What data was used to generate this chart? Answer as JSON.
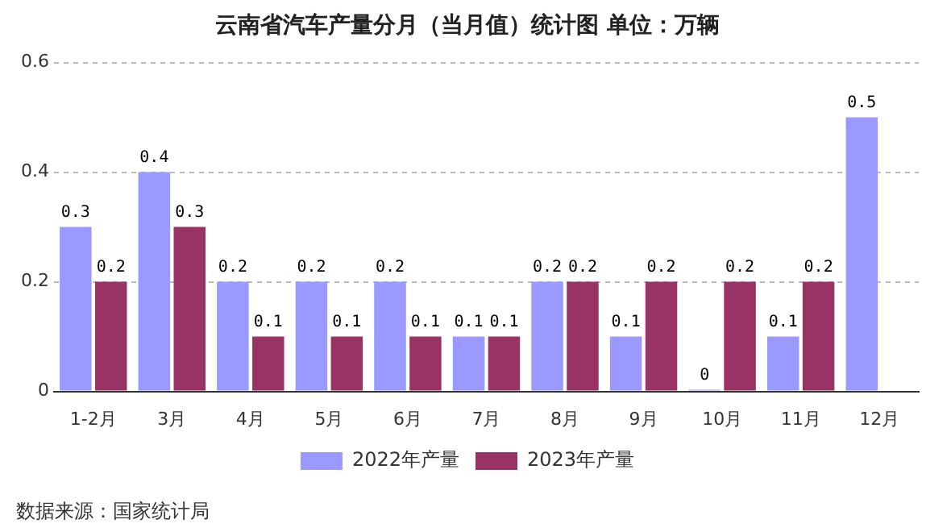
{
  "chart_data": {
    "type": "bar",
    "title": "云南省汽车产量分月（当月值）统计图 单位：万辆",
    "categories": [
      "1-2月",
      "3月",
      "4月",
      "5月",
      "6月",
      "7月",
      "8月",
      "9月",
      "10月",
      "11月",
      "12月"
    ],
    "series": [
      {
        "name": "2022年产量",
        "color": "#9999ff",
        "values": [
          0.3,
          0.4,
          0.2,
          0.2,
          0.2,
          0.1,
          0.2,
          0.1,
          0,
          0.1,
          0.5
        ]
      },
      {
        "name": "2023年产量",
        "color": "#993366",
        "values": [
          0.2,
          0.3,
          0.1,
          0.1,
          0.1,
          0.1,
          0.2,
          0.2,
          0.2,
          0.2,
          null
        ]
      }
    ],
    "ylim": [
      0,
      0.6
    ],
    "yticks": [
      0,
      0.2,
      0.4,
      0.6
    ],
    "grid": "y",
    "legend": "bottom",
    "data_labels": true,
    "annotations": [
      "数据来源：国家统计局"
    ]
  }
}
